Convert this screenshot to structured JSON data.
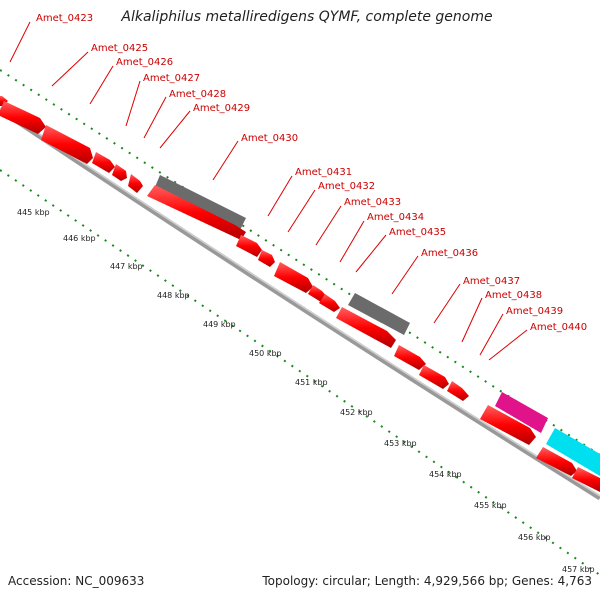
{
  "title": "Alkaliphilus metalliredigens QYMF, complete genome",
  "footer": {
    "accession": "Accession: NC_009633",
    "topology": "Topology: circular; Length: 4,929,566 bp; Genes: 4,763"
  },
  "colors": {
    "gene": "#ff0000",
    "gene_label": "#cc0000",
    "pseudo_or_rna": "#666666",
    "pink_feature": "#e0138a",
    "cyan_feature": "#00e0f0",
    "tick_green": "#1a8a1a",
    "backbone": "#999999"
  },
  "genes": [
    "Amet_0423",
    "Amet_0425",
    "Amet_0426",
    "Amet_0427",
    "Amet_0428",
    "Amet_0429",
    "Amet_0430",
    "Amet_0431",
    "Amet_0432",
    "Amet_0433",
    "Amet_0434",
    "Amet_0435",
    "Amet_0436",
    "Amet_0437",
    "Amet_0438",
    "Amet_0439",
    "Amet_0440"
  ],
  "ruler": [
    "445 kbp",
    "446 kbp",
    "447 kbp",
    "448 kbp",
    "449 kbp",
    "450 kbp",
    "451 kbp",
    "452 kbp",
    "453 kbp",
    "454 kbp",
    "455 kbp",
    "456 kbp",
    "457 kbp"
  ]
}
